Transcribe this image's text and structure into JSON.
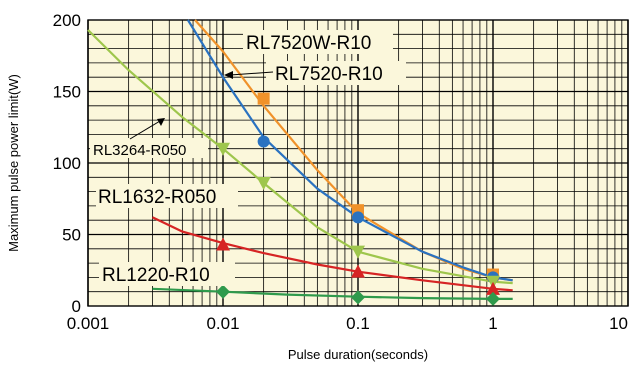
{
  "chart_data": {
    "type": "line",
    "xscale": "log",
    "xlim": [
      0.001,
      10
    ],
    "ylim": [
      0,
      200
    ],
    "grid": true,
    "background": "#fbf7db",
    "xlabel": "Pulse duration(seconds)",
    "ylabel": "Maximum pulse power limit(W)",
    "x_tick_labels": [
      "0.001",
      "0.01",
      "0.1",
      "1",
      "10"
    ],
    "x_tick_values": [
      0.001,
      0.01,
      0.1,
      1,
      10
    ],
    "y_tick_labels": [
      "0",
      "50",
      "100",
      "150",
      "200"
    ],
    "y_tick_values": [
      0,
      50,
      100,
      150,
      200
    ],
    "series": [
      {
        "name": "RL7520W-R10",
        "color": "#f0922a",
        "marker": "square",
        "points": [
          {
            "x": 0.02,
            "y": 145
          },
          {
            "x": 0.1,
            "y": 67
          },
          {
            "x": 1,
            "y": 22
          }
        ],
        "curve": [
          [
            0.0062,
            200
          ],
          [
            0.01,
            178
          ],
          [
            0.02,
            140
          ],
          [
            0.05,
            95
          ],
          [
            0.1,
            65
          ],
          [
            0.3,
            38
          ],
          [
            0.6,
            26
          ],
          [
            1,
            20
          ],
          [
            1.4,
            18
          ]
        ]
      },
      {
        "name": "RL7520-R10",
        "color": "#2a72c0",
        "marker": "circle",
        "points": [
          {
            "x": 0.02,
            "y": 115
          },
          {
            "x": 0.1,
            "y": 62
          },
          {
            "x": 1,
            "y": 20
          }
        ],
        "curve": [
          [
            0.0055,
            200
          ],
          [
            0.01,
            160
          ],
          [
            0.02,
            118
          ],
          [
            0.05,
            82
          ],
          [
            0.1,
            62
          ],
          [
            0.3,
            38
          ],
          [
            0.6,
            27
          ],
          [
            1,
            20
          ],
          [
            1.4,
            18
          ]
        ]
      },
      {
        "name": "RL3264-R050",
        "color": "#9ec64c",
        "marker": "triangle-down",
        "points": [
          {
            "x": 0.01,
            "y": 110
          },
          {
            "x": 0.02,
            "y": 86
          },
          {
            "x": 0.1,
            "y": 38
          },
          {
            "x": 1,
            "y": 17
          }
        ],
        "curve": [
          [
            0.001,
            193
          ],
          [
            0.002,
            165
          ],
          [
            0.005,
            132
          ],
          [
            0.01,
            110
          ],
          [
            0.02,
            86
          ],
          [
            0.05,
            55
          ],
          [
            0.1,
            38
          ],
          [
            0.3,
            26
          ],
          [
            1,
            17
          ],
          [
            1.4,
            16
          ]
        ]
      },
      {
        "name": "RL1632-R050",
        "color": "#d62424",
        "marker": "triangle-up",
        "points": [
          {
            "x": 0.01,
            "y": 43
          },
          {
            "x": 0.1,
            "y": 24
          },
          {
            "x": 1,
            "y": 12
          }
        ],
        "curve": [
          [
            0.003,
            62
          ],
          [
            0.005,
            52
          ],
          [
            0.01,
            44
          ],
          [
            0.02,
            37
          ],
          [
            0.05,
            29
          ],
          [
            0.1,
            24
          ],
          [
            0.3,
            18
          ],
          [
            1,
            12
          ],
          [
            1.4,
            11
          ]
        ]
      },
      {
        "name": "RL1220-R10",
        "color": "#2f9a4c",
        "marker": "diamond",
        "points": [
          {
            "x": 0.01,
            "y": 10
          },
          {
            "x": 0.1,
            "y": 6
          },
          {
            "x": 1,
            "y": 5
          }
        ],
        "curve": [
          [
            0.003,
            12
          ],
          [
            0.01,
            10
          ],
          [
            0.03,
            8
          ],
          [
            0.1,
            6.5
          ],
          [
            0.3,
            5.5
          ],
          [
            1,
            5
          ],
          [
            1.4,
            5
          ]
        ]
      }
    ]
  }
}
